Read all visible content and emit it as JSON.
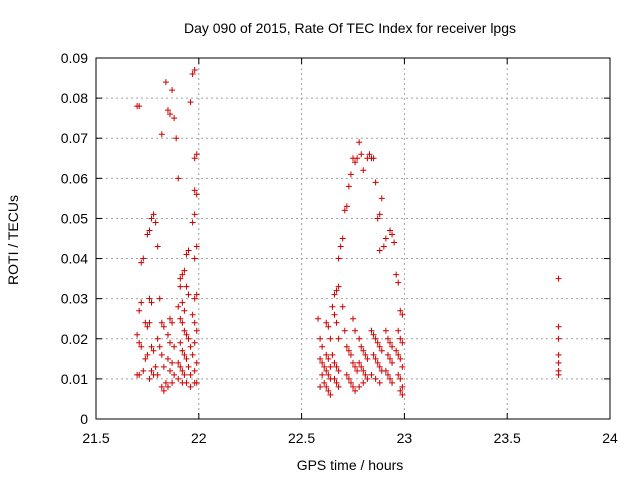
{
  "chart_data": {
    "type": "scatter",
    "title": "Day 090 of 2015, Rate Of TEC Index for receiver lpgs",
    "xlabel": "GPS time / hours",
    "ylabel": "ROTI / TECUs",
    "xlim": [
      21.5,
      24
    ],
    "ylim": [
      0,
      0.09
    ],
    "xticks": [
      21.5,
      22,
      22.5,
      23,
      23.5,
      24
    ],
    "xtick_labels": [
      "21.5",
      "22",
      "22.5",
      "23",
      "23.5",
      "24"
    ],
    "yticks": [
      0,
      0.01,
      0.02,
      0.03,
      0.04,
      0.05,
      0.06,
      0.07,
      0.08,
      0.09
    ],
    "ytick_labels": [
      "0",
      "0.01",
      "0.02",
      "0.03",
      "0.04",
      "0.05",
      "0.06",
      "0.07",
      "0.08",
      "0.09"
    ],
    "grid": true,
    "marker": "+",
    "color": "#cc0000",
    "series": [
      {
        "name": "ROTI",
        "points": [
          [
            21.7,
            0.078
          ],
          [
            21.71,
            0.078
          ],
          [
            21.72,
            0.039
          ],
          [
            21.73,
            0.04
          ],
          [
            21.71,
            0.027
          ],
          [
            21.72,
            0.029
          ],
          [
            21.7,
            0.021
          ],
          [
            21.71,
            0.019
          ],
          [
            21.72,
            0.018
          ],
          [
            21.7,
            0.011
          ],
          [
            21.71,
            0.011
          ],
          [
            21.73,
            0.012
          ],
          [
            21.75,
            0.046
          ],
          [
            21.76,
            0.047
          ],
          [
            21.77,
            0.05
          ],
          [
            21.78,
            0.051
          ],
          [
            21.79,
            0.049
          ],
          [
            21.76,
            0.03
          ],
          [
            21.77,
            0.029
          ],
          [
            21.74,
            0.024
          ],
          [
            21.75,
            0.023
          ],
          [
            21.76,
            0.024
          ],
          [
            21.77,
            0.018
          ],
          [
            21.78,
            0.017
          ],
          [
            21.75,
            0.016
          ],
          [
            21.74,
            0.015
          ],
          [
            21.77,
            0.012
          ],
          [
            21.78,
            0.011
          ],
          [
            21.79,
            0.013
          ],
          [
            21.76,
            0.01
          ],
          [
            21.8,
            0.043
          ],
          [
            21.81,
            0.03
          ],
          [
            21.82,
            0.024
          ],
          [
            21.83,
            0.023
          ],
          [
            21.8,
            0.02
          ],
          [
            21.81,
            0.018
          ],
          [
            21.82,
            0.016
          ],
          [
            21.83,
            0.013
          ],
          [
            21.84,
            0.009
          ],
          [
            21.82,
            0.008
          ],
          [
            21.83,
            0.007
          ],
          [
            21.8,
            0.011
          ],
          [
            21.82,
            0.071
          ],
          [
            21.84,
            0.084
          ],
          [
            21.85,
            0.077
          ],
          [
            21.86,
            0.076
          ],
          [
            21.87,
            0.082
          ],
          [
            21.88,
            0.075
          ],
          [
            21.89,
            0.07
          ],
          [
            21.86,
            0.025
          ],
          [
            21.87,
            0.024
          ],
          [
            21.85,
            0.021
          ],
          [
            21.86,
            0.019
          ],
          [
            21.88,
            0.018
          ],
          [
            21.85,
            0.015
          ],
          [
            21.87,
            0.014
          ],
          [
            21.86,
            0.012
          ],
          [
            21.88,
            0.011
          ],
          [
            21.85,
            0.008
          ],
          [
            21.87,
            0.009
          ],
          [
            21.9,
            0.06
          ],
          [
            21.91,
            0.035
          ],
          [
            21.92,
            0.036
          ],
          [
            21.93,
            0.037
          ],
          [
            21.91,
            0.033
          ],
          [
            21.92,
            0.029
          ],
          [
            21.93,
            0.027
          ],
          [
            21.9,
            0.028
          ],
          [
            21.91,
            0.025
          ],
          [
            21.92,
            0.024
          ],
          [
            21.93,
            0.022
          ],
          [
            21.91,
            0.019
          ],
          [
            21.92,
            0.017
          ],
          [
            21.93,
            0.016
          ],
          [
            21.9,
            0.014
          ],
          [
            21.91,
            0.013
          ],
          [
            21.92,
            0.012
          ],
          [
            21.93,
            0.011
          ],
          [
            21.9,
            0.01
          ],
          [
            21.92,
            0.009
          ],
          [
            21.94,
            0.041
          ],
          [
            21.95,
            0.042
          ],
          [
            21.94,
            0.033
          ],
          [
            21.95,
            0.031
          ],
          [
            21.94,
            0.021
          ],
          [
            21.95,
            0.02
          ],
          [
            21.96,
            0.018
          ],
          [
            21.94,
            0.015
          ],
          [
            21.95,
            0.013
          ],
          [
            21.96,
            0.011
          ],
          [
            21.94,
            0.009
          ],
          [
            21.96,
            0.008
          ],
          [
            21.96,
            0.079
          ],
          [
            21.97,
            0.086
          ],
          [
            21.98,
            0.087
          ],
          [
            21.98,
            0.065
          ],
          [
            21.99,
            0.066
          ],
          [
            21.98,
            0.057
          ],
          [
            21.99,
            0.056
          ],
          [
            21.98,
            0.051
          ],
          [
            21.97,
            0.049
          ],
          [
            21.99,
            0.043
          ],
          [
            21.98,
            0.04
          ],
          [
            21.99,
            0.031
          ],
          [
            21.98,
            0.03
          ],
          [
            21.97,
            0.026
          ],
          [
            21.98,
            0.024
          ],
          [
            21.99,
            0.022
          ],
          [
            21.98,
            0.019
          ],
          [
            21.97,
            0.016
          ],
          [
            21.99,
            0.014
          ],
          [
            21.98,
            0.012
          ],
          [
            21.99,
            0.009
          ],
          [
            21.98,
            0.009
          ],
          [
            22.58,
            0.025
          ],
          [
            22.59,
            0.02
          ],
          [
            22.6,
            0.018
          ],
          [
            22.59,
            0.015
          ],
          [
            22.6,
            0.014
          ],
          [
            22.61,
            0.013
          ],
          [
            22.6,
            0.011
          ],
          [
            22.61,
            0.009
          ],
          [
            22.59,
            0.008
          ],
          [
            22.62,
            0.024
          ],
          [
            22.63,
            0.023
          ],
          [
            22.64,
            0.02
          ],
          [
            22.62,
            0.016
          ],
          [
            22.63,
            0.015
          ],
          [
            22.64,
            0.013
          ],
          [
            22.62,
            0.012
          ],
          [
            22.63,
            0.011
          ],
          [
            22.64,
            0.01
          ],
          [
            22.62,
            0.008
          ],
          [
            22.63,
            0.007
          ],
          [
            22.64,
            0.006
          ],
          [
            22.65,
            0.028
          ],
          [
            22.66,
            0.031
          ],
          [
            22.67,
            0.032
          ],
          [
            22.68,
            0.033
          ],
          [
            22.66,
            0.026
          ],
          [
            22.67,
            0.024
          ],
          [
            22.68,
            0.02
          ],
          [
            22.65,
            0.016
          ],
          [
            22.66,
            0.014
          ],
          [
            22.67,
            0.013
          ],
          [
            22.68,
            0.012
          ],
          [
            22.66,
            0.01
          ],
          [
            22.67,
            0.009
          ],
          [
            22.68,
            0.008
          ],
          [
            22.68,
            0.04
          ],
          [
            22.69,
            0.043
          ],
          [
            22.7,
            0.045
          ],
          [
            22.71,
            0.052
          ],
          [
            22.72,
            0.053
          ],
          [
            22.73,
            0.058
          ],
          [
            22.74,
            0.061
          ],
          [
            22.75,
            0.065
          ],
          [
            22.76,
            0.064
          ],
          [
            22.77,
            0.065
          ],
          [
            22.78,
            0.069
          ],
          [
            22.79,
            0.066
          ],
          [
            22.8,
            0.062
          ],
          [
            22.7,
            0.028
          ],
          [
            22.71,
            0.022
          ],
          [
            22.72,
            0.018
          ],
          [
            22.73,
            0.017
          ],
          [
            22.74,
            0.016
          ],
          [
            22.75,
            0.014
          ],
          [
            22.76,
            0.013
          ],
          [
            22.77,
            0.012
          ],
          [
            22.72,
            0.011
          ],
          [
            22.73,
            0.01
          ],
          [
            22.74,
            0.009
          ],
          [
            22.75,
            0.008
          ],
          [
            22.76,
            0.007
          ],
          [
            22.78,
            0.008
          ],
          [
            22.75,
            0.025
          ],
          [
            22.76,
            0.022
          ],
          [
            22.78,
            0.02
          ],
          [
            22.79,
            0.018
          ],
          [
            22.8,
            0.017
          ],
          [
            22.81,
            0.016
          ],
          [
            22.82,
            0.015
          ],
          [
            22.78,
            0.014
          ],
          [
            22.79,
            0.013
          ],
          [
            22.8,
            0.012
          ],
          [
            22.81,
            0.011
          ],
          [
            22.82,
            0.01
          ],
          [
            22.8,
            0.009
          ],
          [
            22.82,
            0.065
          ],
          [
            22.83,
            0.066
          ],
          [
            22.84,
            0.065
          ],
          [
            22.85,
            0.065
          ],
          [
            22.86,
            0.059
          ],
          [
            22.87,
            0.05
          ],
          [
            22.88,
            0.051
          ],
          [
            22.89,
            0.055
          ],
          [
            22.9,
            0.043
          ],
          [
            22.88,
            0.042
          ],
          [
            22.91,
            0.045
          ],
          [
            22.84,
            0.022
          ],
          [
            22.85,
            0.021
          ],
          [
            22.86,
            0.02
          ],
          [
            22.87,
            0.019
          ],
          [
            22.88,
            0.018
          ],
          [
            22.89,
            0.017
          ],
          [
            22.85,
            0.016
          ],
          [
            22.86,
            0.015
          ],
          [
            22.87,
            0.014
          ],
          [
            22.88,
            0.013
          ],
          [
            22.89,
            0.012
          ],
          [
            22.84,
            0.011
          ],
          [
            22.86,
            0.01
          ],
          [
            22.88,
            0.009
          ],
          [
            22.91,
            0.022
          ],
          [
            22.92,
            0.02
          ],
          [
            22.93,
            0.019
          ],
          [
            22.94,
            0.018
          ],
          [
            22.92,
            0.016
          ],
          [
            22.93,
            0.015
          ],
          [
            22.94,
            0.014
          ],
          [
            22.91,
            0.012
          ],
          [
            22.92,
            0.011
          ],
          [
            22.93,
            0.01
          ],
          [
            22.94,
            0.009
          ],
          [
            22.93,
            0.047
          ],
          [
            22.94,
            0.046
          ],
          [
            22.95,
            0.044
          ],
          [
            22.96,
            0.036
          ],
          [
            22.97,
            0.034
          ],
          [
            22.98,
            0.027
          ],
          [
            22.99,
            0.026
          ],
          [
            22.97,
            0.022
          ],
          [
            22.98,
            0.02
          ],
          [
            22.99,
            0.019
          ],
          [
            22.96,
            0.017
          ],
          [
            22.97,
            0.016
          ],
          [
            22.98,
            0.015
          ],
          [
            22.99,
            0.013
          ],
          [
            22.97,
            0.011
          ],
          [
            22.98,
            0.01
          ],
          [
            22.99,
            0.008
          ],
          [
            22.98,
            0.007
          ],
          [
            22.99,
            0.006
          ],
          [
            23.75,
            0.035
          ],
          [
            23.75,
            0.023
          ],
          [
            23.75,
            0.02
          ],
          [
            23.75,
            0.016
          ],
          [
            23.75,
            0.014
          ],
          [
            23.75,
            0.012
          ],
          [
            23.75,
            0.011
          ]
        ]
      }
    ]
  }
}
